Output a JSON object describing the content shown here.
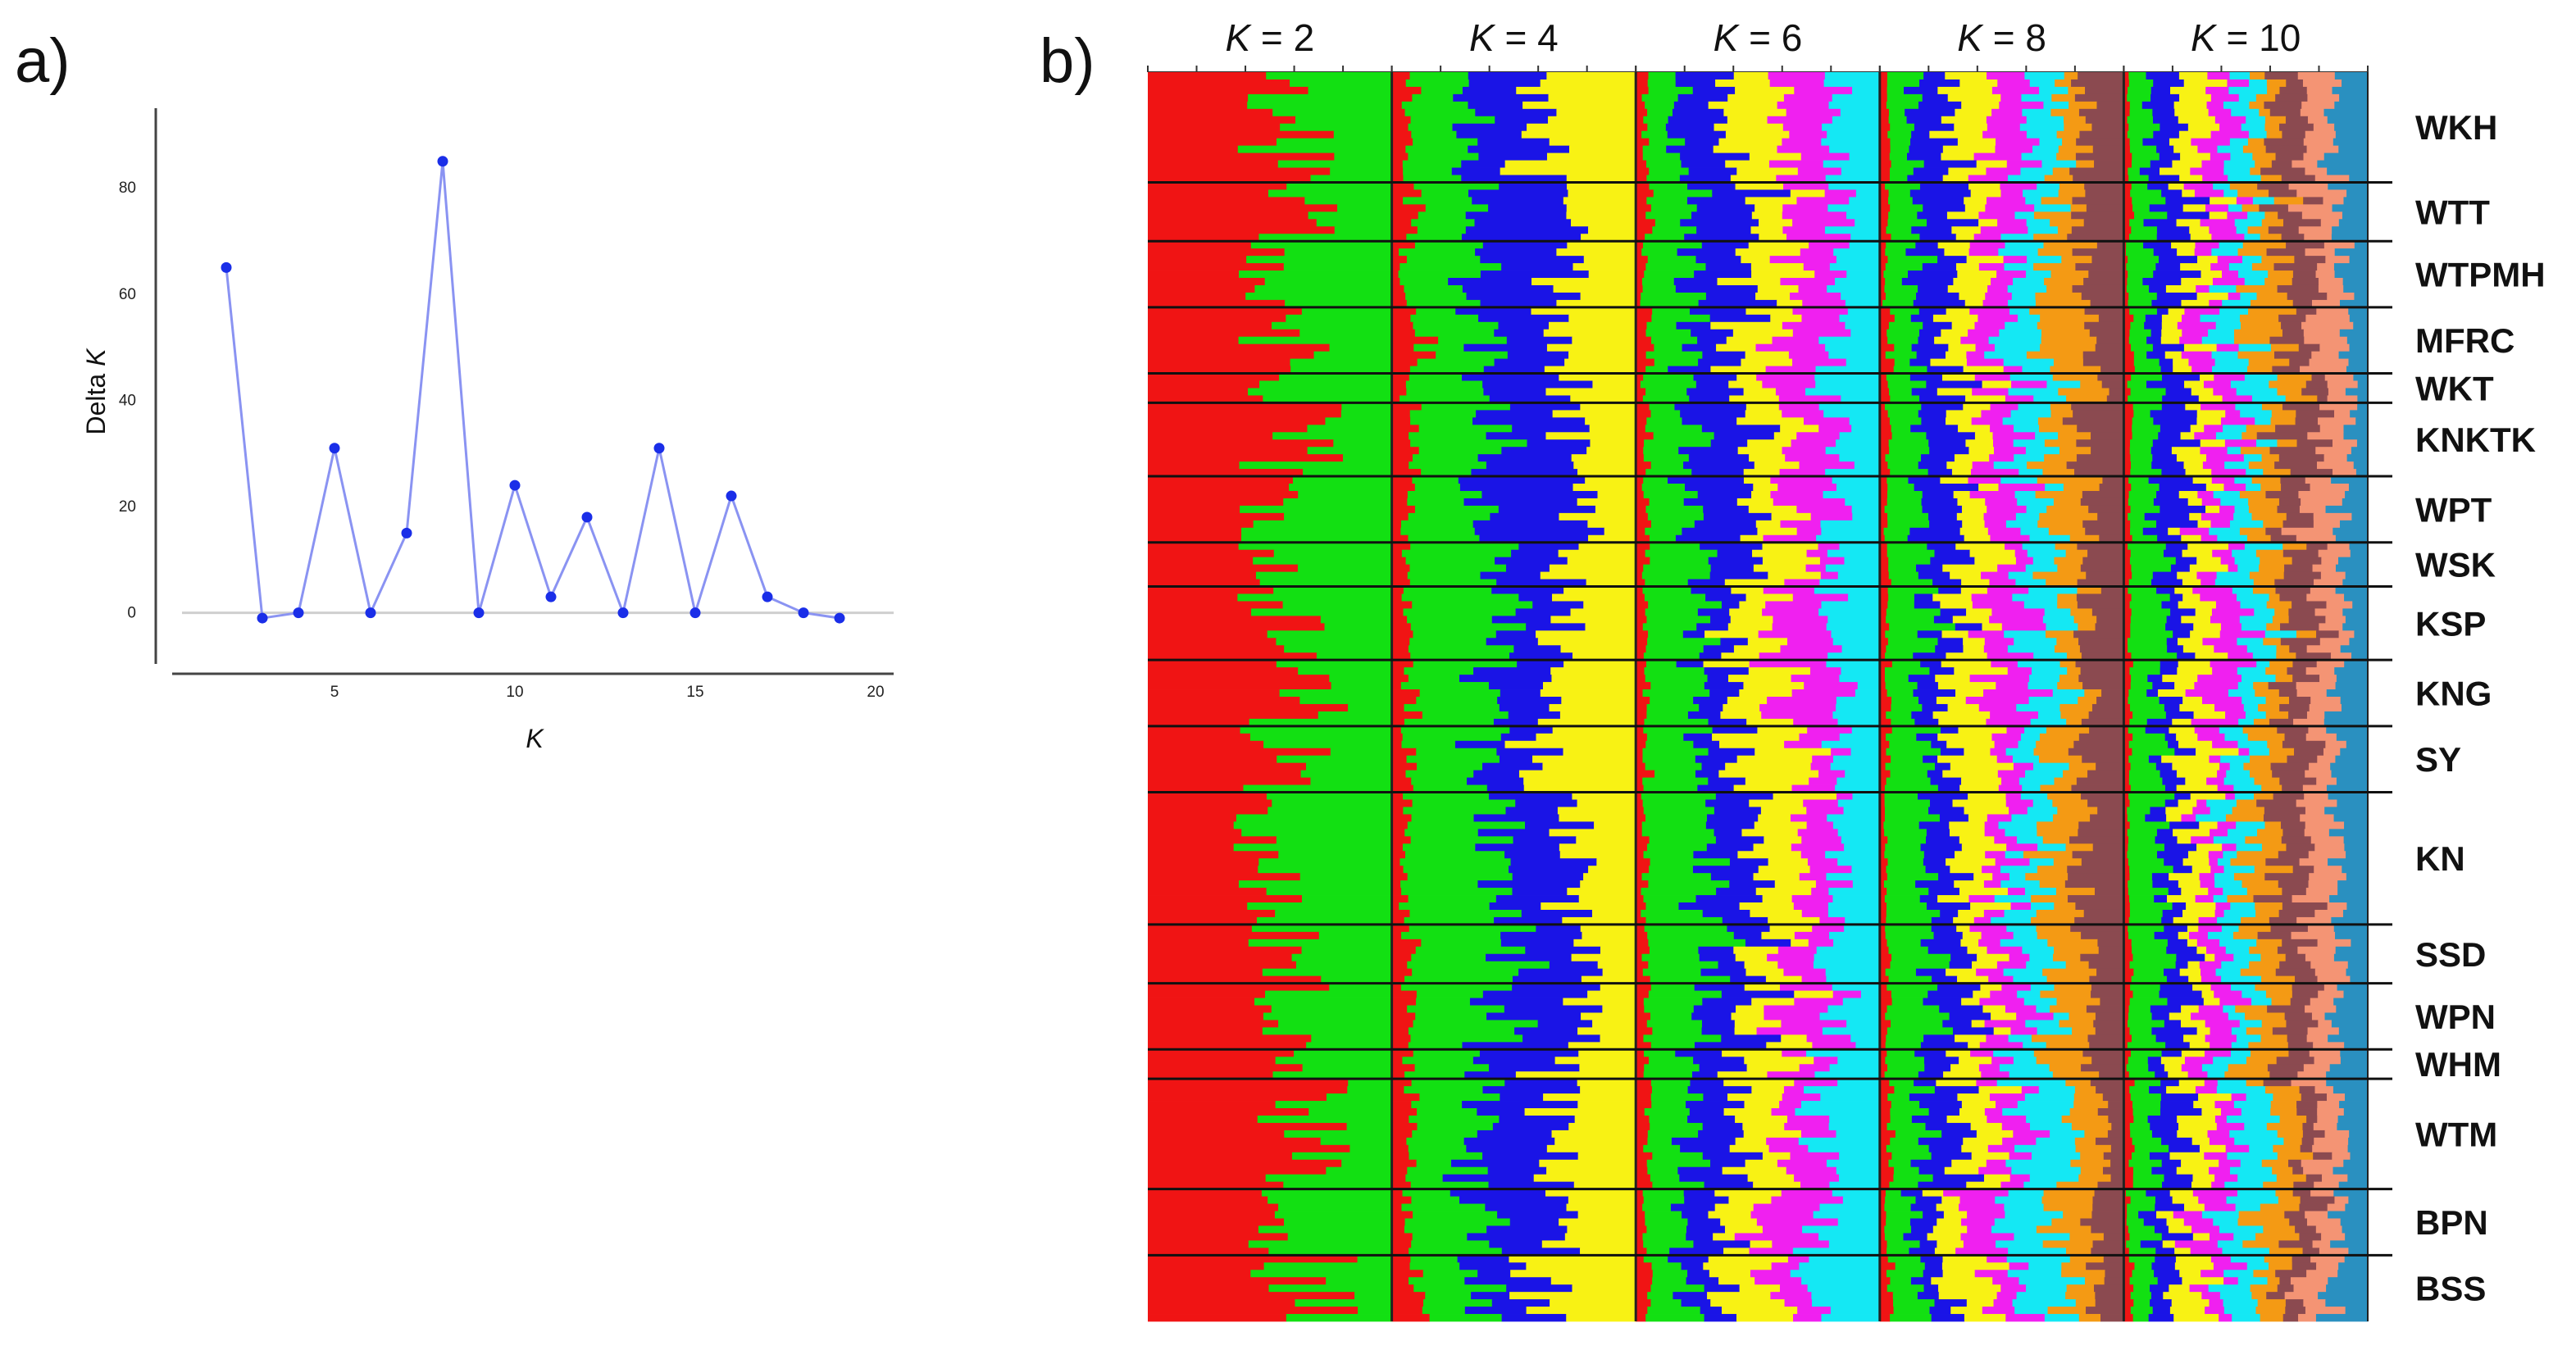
{
  "panels": {
    "a_label": "a)",
    "b_label": "b)"
  },
  "chart_data": [
    {
      "type": "line",
      "panel": "a",
      "xlabel": "K",
      "ylabel": "Delta K",
      "xticks": [
        5,
        10,
        15,
        20
      ],
      "yticks": [
        0,
        20,
        40,
        60,
        80
      ],
      "xlim": [
        0.5,
        20.5
      ],
      "ylim": [
        -5,
        95
      ],
      "grid": false,
      "line_color": "#8a93f2",
      "marker_color": "#1a2ee8",
      "x": [
        2,
        3,
        4,
        5,
        6,
        7,
        8,
        9,
        10,
        11,
        12,
        13,
        14,
        15,
        16,
        17,
        18,
        19
      ],
      "y": [
        65,
        -1,
        0,
        31,
        0,
        15,
        85,
        0,
        24,
        3,
        18,
        0,
        31,
        0,
        22,
        3,
        0,
        -1
      ]
    },
    {
      "type": "stacked-bar",
      "panel": "b",
      "orientation": "horizontal",
      "k_values": [
        2,
        4,
        6,
        8,
        10
      ],
      "k_label_prefix": "K",
      "k_label_sep": " = ",
      "k_labels": [
        "2",
        "4",
        "6",
        "8",
        "10"
      ],
      "colors": {
        "red": "#f01414",
        "green": "#12e012",
        "blue": "#1a14e6",
        "yellow": "#f8f214",
        "magenta": "#f020f0",
        "cyan": "#14e8f4",
        "orange": "#f49a14",
        "brown": "#8b4a50",
        "salmon": "#f49474",
        "teal": "#2a90c0"
      },
      "cluster_colors": {
        "2": [
          "red",
          "green"
        ],
        "4": [
          "red",
          "green",
          "blue",
          "yellow"
        ],
        "6": [
          "red",
          "green",
          "blue",
          "yellow",
          "magenta",
          "cyan"
        ],
        "8": [
          "red",
          "green",
          "blue",
          "yellow",
          "magenta",
          "cyan",
          "orange",
          "brown"
        ],
        "10": [
          "red",
          "green",
          "blue",
          "yellow",
          "magenta",
          "cyan",
          "orange",
          "brown",
          "salmon",
          "teal"
        ]
      },
      "populations": [
        {
          "name": "WKH",
          "n": 15
        },
        {
          "name": "WTT",
          "n": 8
        },
        {
          "name": "WTPMH",
          "n": 9
        },
        {
          "name": "MFRC",
          "n": 9
        },
        {
          "name": "WKT",
          "n": 4
        },
        {
          "name": "KNKTK",
          "n": 10
        },
        {
          "name": "WPT",
          "n": 9
        },
        {
          "name": "WSK",
          "n": 6
        },
        {
          "name": "KSP",
          "n": 10
        },
        {
          "name": "KNG",
          "n": 9
        },
        {
          "name": "SY",
          "n": 9
        },
        {
          "name": "KN",
          "n": 18
        },
        {
          "name": "SSD",
          "n": 8
        },
        {
          "name": "WPN",
          "n": 9
        },
        {
          "name": "WHM",
          "n": 4
        },
        {
          "name": "WTM",
          "n": 15
        },
        {
          "name": "BPN",
          "n": 9
        },
        {
          "name": "BSS",
          "n": 9
        }
      ]
    }
  ]
}
